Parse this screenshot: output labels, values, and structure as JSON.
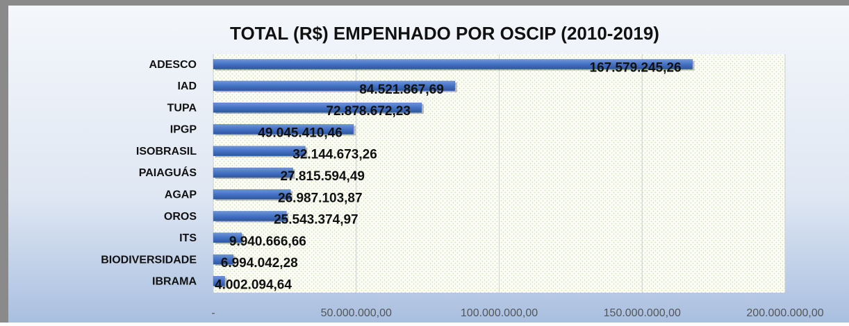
{
  "chart_data": {
    "type": "bar",
    "orientation": "horizontal",
    "title": "TOTAL (R$) EMPENHADO POR OSCIP (2010-2019)",
    "categories": [
      "ADESCO",
      "IAD",
      "TUPA",
      "IPGP",
      "ISOBRASIL",
      "PAIAGUÁS",
      "AGAP",
      "OROS",
      "ITS",
      "BIODIVERSIDADE",
      "IBRAMA"
    ],
    "values": [
      167579245.26,
      84521867.69,
      72878672.23,
      49045410.46,
      32144673.26,
      27815594.49,
      26987103.87,
      25543374.97,
      9940666.66,
      6994042.28,
      4002094.64
    ],
    "value_labels": [
      "167.579.245,26",
      "84.521.867,69",
      "72.878.672,23",
      "49.045.410,46",
      "32.144.673,26",
      "27.815.594,49",
      "26.987.103,87",
      "25.543.374,97",
      "9.940.666,66",
      "6.994.042,28",
      "4.002.094,64"
    ],
    "color": "#4472c4",
    "xlim": [
      0,
      200000000
    ],
    "xticks": [
      {
        "value": 0,
        "label": "-"
      },
      {
        "value": 50000000,
        "label": "50.000.000,00"
      },
      {
        "value": 100000000,
        "label": "100.000.000,00"
      },
      {
        "value": 150000000,
        "label": "150.000.000,00"
      },
      {
        "value": 200000000,
        "label": "200.000.000,00"
      }
    ],
    "grid": true
  }
}
